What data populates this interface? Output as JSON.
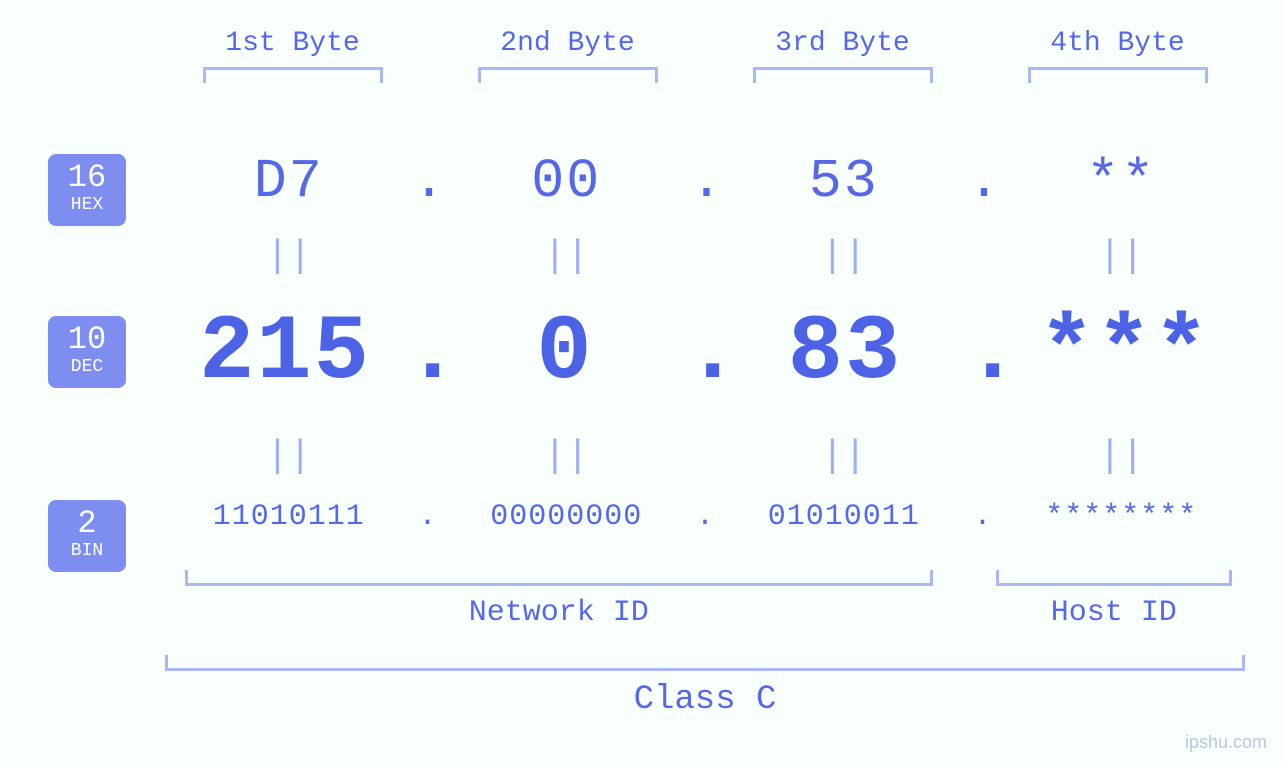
{
  "colors": {
    "background": "#f9fffc",
    "primary_text": "#5568e8",
    "bold_text": "#4d63e6",
    "badge_bg": "#7d8ef0",
    "badge_text": "#ffffff",
    "bracket": "#abb6f6",
    "equals": "#a1adf4",
    "watermark": "#bcc4e8"
  },
  "fonts": {
    "family": "Courier New, monospace",
    "byte_label_size": 28,
    "hex_size": 55,
    "dec_size": 92,
    "bin_size": 30,
    "badge_num_size": 32,
    "badge_label_size": 18,
    "bottom_label_size": 30,
    "class_label_size": 34
  },
  "byte_headers": [
    "1st Byte",
    "2nd Byte",
    "3rd Byte",
    "4th Byte"
  ],
  "badges": {
    "hex": {
      "base": "16",
      "label": "HEX"
    },
    "dec": {
      "base": "10",
      "label": "DEC"
    },
    "bin": {
      "base": "2",
      "label": "BIN"
    }
  },
  "hex": {
    "b1": "D7",
    "b2": "00",
    "b3": "53",
    "b4": "**"
  },
  "dec": {
    "b1": "215",
    "b2": "0",
    "b3": "83",
    "b4": "***"
  },
  "bin": {
    "b1": "11010111",
    "b2": "00000000",
    "b3": "01010011",
    "b4": "********"
  },
  "separators": {
    "dot": ".",
    "equals": "||"
  },
  "bottom_labels": {
    "network": "Network ID",
    "host": "Host ID",
    "class": "Class C"
  },
  "watermark": "ipshu.com"
}
